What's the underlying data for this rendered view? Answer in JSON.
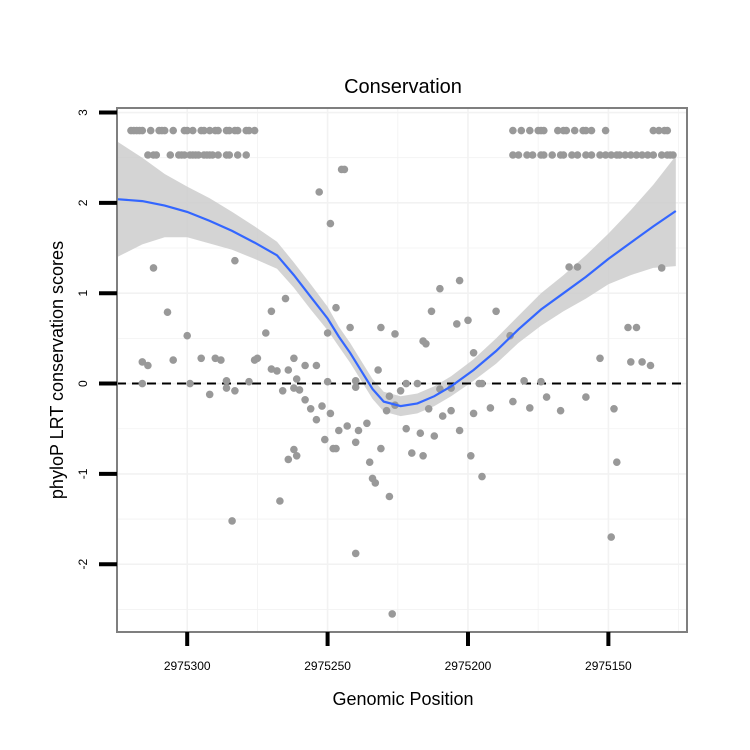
{
  "chart_data": {
    "type": "scatter",
    "title": "Conservation",
    "xlabel": "Genomic Position",
    "ylabel": "phyloP LRT conservation scores",
    "x_reversed": true,
    "xlim": [
      2975325,
      2975122
    ],
    "ylim": [
      -2.75,
      3.05
    ],
    "x_ticks": [
      2975300,
      2975250,
      2975200,
      2975150
    ],
    "x_tick_labels": [
      "2975300",
      "2975250",
      "2975200",
      "2975150"
    ],
    "y_ticks": [
      -2,
      -1,
      0,
      1,
      2,
      3
    ],
    "y_tick_labels": [
      "-2",
      "-1",
      "0",
      "1",
      "2",
      "3"
    ],
    "grid": true,
    "reference_line": {
      "y": 0,
      "style": "dashed",
      "color": "#000000"
    },
    "colors": {
      "points": "#999999",
      "smooth_line": "#3366ff",
      "ribbon": "#cccccc",
      "panel_border": "#7f7f7f",
      "grid": "#f2f2f2"
    },
    "points": [
      [
        2975320,
        2.8
      ],
      [
        2975319,
        2.8
      ],
      [
        2975318,
        2.8
      ],
      [
        2975317,
        2.8
      ],
      [
        2975316,
        2.8
      ],
      [
        2975313,
        2.8
      ],
      [
        2975310,
        2.8
      ],
      [
        2975309,
        2.8
      ],
      [
        2975308,
        2.8
      ],
      [
        2975305,
        2.8
      ],
      [
        2975301,
        2.8
      ],
      [
        2975300,
        2.8
      ],
      [
        2975298,
        2.8
      ],
      [
        2975295,
        2.8
      ],
      [
        2975294,
        2.8
      ],
      [
        2975292,
        2.8
      ],
      [
        2975290,
        2.8
      ],
      [
        2975289,
        2.8
      ],
      [
        2975286,
        2.8
      ],
      [
        2975285,
        2.8
      ],
      [
        2975283,
        2.8
      ],
      [
        2975282,
        2.8
      ],
      [
        2975279,
        2.8
      ],
      [
        2975278,
        2.8
      ],
      [
        2975276,
        2.8
      ],
      [
        2975314,
        2.53
      ],
      [
        2975312,
        2.53
      ],
      [
        2975311,
        2.53
      ],
      [
        2975306,
        2.53
      ],
      [
        2975303,
        2.53
      ],
      [
        2975302,
        2.53
      ],
      [
        2975301,
        2.53
      ],
      [
        2975299,
        2.53
      ],
      [
        2975298,
        2.53
      ],
      [
        2975297,
        2.53
      ],
      [
        2975296,
        2.53
      ],
      [
        2975294,
        2.53
      ],
      [
        2975293,
        2.53
      ],
      [
        2975292,
        2.53
      ],
      [
        2975291,
        2.53
      ],
      [
        2975289,
        2.53
      ],
      [
        2975286,
        2.53
      ],
      [
        2975285,
        2.53
      ],
      [
        2975282,
        2.53
      ],
      [
        2975279,
        2.53
      ],
      [
        2975184,
        2.8
      ],
      [
        2975181,
        2.8
      ],
      [
        2975178,
        2.8
      ],
      [
        2975175,
        2.8
      ],
      [
        2975174,
        2.8
      ],
      [
        2975173,
        2.8
      ],
      [
        2975168,
        2.8
      ],
      [
        2975166,
        2.8
      ],
      [
        2975165,
        2.8
      ],
      [
        2975162,
        2.8
      ],
      [
        2975159,
        2.8
      ],
      [
        2975158,
        2.8
      ],
      [
        2975156,
        2.8
      ],
      [
        2975151,
        2.8
      ],
      [
        2975134,
        2.8
      ],
      [
        2975132,
        2.8
      ],
      [
        2975130,
        2.8
      ],
      [
        2975129,
        2.8
      ],
      [
        2975184,
        2.53
      ],
      [
        2975182,
        2.53
      ],
      [
        2975179,
        2.53
      ],
      [
        2975177,
        2.53
      ],
      [
        2975174,
        2.53
      ],
      [
        2975173,
        2.53
      ],
      [
        2975170,
        2.53
      ],
      [
        2975167,
        2.53
      ],
      [
        2975166,
        2.53
      ],
      [
        2975163,
        2.53
      ],
      [
        2975161,
        2.53
      ],
      [
        2975158,
        2.53
      ],
      [
        2975156,
        2.53
      ],
      [
        2975153,
        2.53
      ],
      [
        2975151,
        2.53
      ],
      [
        2975149,
        2.53
      ],
      [
        2975147,
        2.53
      ],
      [
        2975146,
        2.53
      ],
      [
        2975144,
        2.53
      ],
      [
        2975142,
        2.53
      ],
      [
        2975140,
        2.53
      ],
      [
        2975138,
        2.53
      ],
      [
        2975136,
        2.53
      ],
      [
        2975134,
        2.53
      ],
      [
        2975131,
        2.53
      ],
      [
        2975129,
        2.53
      ],
      [
        2975128,
        2.53
      ],
      [
        2975127,
        2.53
      ],
      [
        2975253,
        2.12
      ],
      [
        2975245,
        2.37
      ],
      [
        2975244,
        2.37
      ],
      [
        2975249,
        1.77
      ],
      [
        2975312,
        1.28
      ],
      [
        2975283,
        1.36
      ],
      [
        2975164,
        1.29
      ],
      [
        2975161,
        1.29
      ],
      [
        2975131,
        1.28
      ],
      [
        2975203,
        1.14
      ],
      [
        2975210,
        1.05
      ],
      [
        2975265,
        0.94
      ],
      [
        2975247,
        0.84
      ],
      [
        2975213,
        0.8
      ],
      [
        2975307,
        0.79
      ],
      [
        2975270,
        0.8
      ],
      [
        2975190,
        0.8
      ],
      [
        2975200,
        0.7
      ],
      [
        2975204,
        0.66
      ],
      [
        2975231,
        0.62
      ],
      [
        2975143,
        0.62
      ],
      [
        2975140,
        0.62
      ],
      [
        2975272,
        0.56
      ],
      [
        2975250,
        0.56
      ],
      [
        2975300,
        0.53
      ],
      [
        2975185,
        0.53
      ],
      [
        2975242,
        0.62
      ],
      [
        2975226,
        0.55
      ],
      [
        2975216,
        0.47
      ],
      [
        2975215,
        0.44
      ],
      [
        2975198,
        0.34
      ],
      [
        2975254,
        0.2
      ],
      [
        2975258,
        0.2
      ],
      [
        2975262,
        0.28
      ],
      [
        2975275,
        0.28
      ],
      [
        2975276,
        0.26
      ],
      [
        2975290,
        0.28
      ],
      [
        2975295,
        0.28
      ],
      [
        2975288,
        0.26
      ],
      [
        2975305,
        0.26
      ],
      [
        2975314,
        0.2
      ],
      [
        2975316,
        0.24
      ],
      [
        2975153,
        0.28
      ],
      [
        2975142,
        0.24
      ],
      [
        2975138,
        0.24
      ],
      [
        2975135,
        0.2
      ],
      [
        2975232,
        0.15
      ],
      [
        2975268,
        0.14
      ],
      [
        2975264,
        0.15
      ],
      [
        2975270,
        0.16
      ],
      [
        2975261,
        0.05
      ],
      [
        2975278,
        0.02
      ],
      [
        2975286,
        0.03
      ],
      [
        2975299,
        0.0
      ],
      [
        2975316,
        0.0
      ],
      [
        2975222,
        0.0
      ],
      [
        2975196,
        0.0
      ],
      [
        2975180,
        0.03
      ],
      [
        2975174,
        0.02
      ],
      [
        2975250,
        0.02
      ],
      [
        2975240,
        0.03
      ],
      [
        2975218,
        0.0
      ],
      [
        2975195,
        0.0
      ],
      [
        2975283,
        -0.08
      ],
      [
        2975292,
        -0.12
      ],
      [
        2975286,
        -0.05
      ],
      [
        2975260,
        -0.07
      ],
      [
        2975266,
        -0.08
      ],
      [
        2975262,
        -0.05
      ],
      [
        2975258,
        -0.18
      ],
      [
        2975240,
        -0.04
      ],
      [
        2975228,
        -0.14
      ],
      [
        2975224,
        -0.08
      ],
      [
        2975210,
        -0.06
      ],
      [
        2975206,
        -0.05
      ],
      [
        2975167,
        -0.3
      ],
      [
        2975172,
        -0.15
      ],
      [
        2975184,
        -0.2
      ],
      [
        2975158,
        -0.15
      ],
      [
        2975148,
        -0.28
      ],
      [
        2975256,
        -0.28
      ],
      [
        2975252,
        -0.25
      ],
      [
        2975249,
        -0.33
      ],
      [
        2975243,
        -0.47
      ],
      [
        2975236,
        -0.44
      ],
      [
        2975229,
        -0.3
      ],
      [
        2975226,
        -0.24
      ],
      [
        2975214,
        -0.28
      ],
      [
        2975209,
        -0.36
      ],
      [
        2975206,
        -0.3
      ],
      [
        2975198,
        -0.33
      ],
      [
        2975192,
        -0.27
      ],
      [
        2975178,
        -0.27
      ],
      [
        2975254,
        -0.4
      ],
      [
        2975246,
        -0.52
      ],
      [
        2975239,
        -0.52
      ],
      [
        2975222,
        -0.5
      ],
      [
        2975217,
        -0.55
      ],
      [
        2975212,
        -0.58
      ],
      [
        2975203,
        -0.52
      ],
      [
        2975251,
        -0.62
      ],
      [
        2975240,
        -0.65
      ],
      [
        2975231,
        -0.72
      ],
      [
        2975220,
        -0.77
      ],
      [
        2975216,
        -0.8
      ],
      [
        2975248,
        -0.72
      ],
      [
        2975247,
        -0.72
      ],
      [
        2975262,
        -0.73
      ],
      [
        2975261,
        -0.8
      ],
      [
        2975264,
        -0.84
      ],
      [
        2975199,
        -0.8
      ],
      [
        2975195,
        -1.03
      ],
      [
        2975235,
        -0.87
      ],
      [
        2975234,
        -1.05
      ],
      [
        2975233,
        -1.1
      ],
      [
        2975228,
        -1.25
      ],
      [
        2975267,
        -1.3
      ],
      [
        2975284,
        -1.52
      ],
      [
        2975240,
        -1.88
      ],
      [
        2975147,
        -0.87
      ],
      [
        2975149,
        -1.7
      ],
      [
        2975227,
        -2.55
      ]
    ],
    "smooth_line": {
      "x": [
        2975325,
        2975316,
        2975308,
        2975300,
        2975292,
        2975284,
        2975276,
        2975268,
        2975262,
        2975256,
        2975250,
        2975246,
        2975242,
        2975238,
        2975234,
        2975230,
        2975224,
        2975218,
        2975212,
        2975206,
        2975198,
        2975190,
        2975182,
        2975174,
        2975166,
        2975158,
        2975150,
        2975142,
        2975134,
        2975126
      ],
      "y": [
        2.04,
        2.02,
        1.97,
        1.9,
        1.8,
        1.69,
        1.56,
        1.42,
        1.2,
        0.96,
        0.72,
        0.52,
        0.34,
        0.14,
        -0.06,
        -0.2,
        -0.25,
        -0.22,
        -0.14,
        -0.03,
        0.15,
        0.36,
        0.6,
        0.82,
        1.0,
        1.18,
        1.38,
        1.56,
        1.74,
        1.91
      ]
    },
    "smooth_band": {
      "upper": [
        2.68,
        2.5,
        2.32,
        2.18,
        2.05,
        1.9,
        1.74,
        1.57,
        1.34,
        1.1,
        0.85,
        0.63,
        0.45,
        0.25,
        0.05,
        -0.09,
        -0.14,
        -0.11,
        -0.03,
        0.08,
        0.27,
        0.5,
        0.75,
        1.0,
        1.2,
        1.42,
        1.66,
        1.92,
        2.2,
        2.52
      ],
      "lower": [
        1.4,
        1.54,
        1.62,
        1.62,
        1.55,
        1.48,
        1.38,
        1.27,
        1.06,
        0.82,
        0.59,
        0.41,
        0.23,
        0.03,
        -0.17,
        -0.31,
        -0.36,
        -0.33,
        -0.25,
        -0.14,
        0.03,
        0.22,
        0.45,
        0.64,
        0.8,
        0.94,
        1.1,
        1.2,
        1.28,
        1.3
      ]
    }
  }
}
